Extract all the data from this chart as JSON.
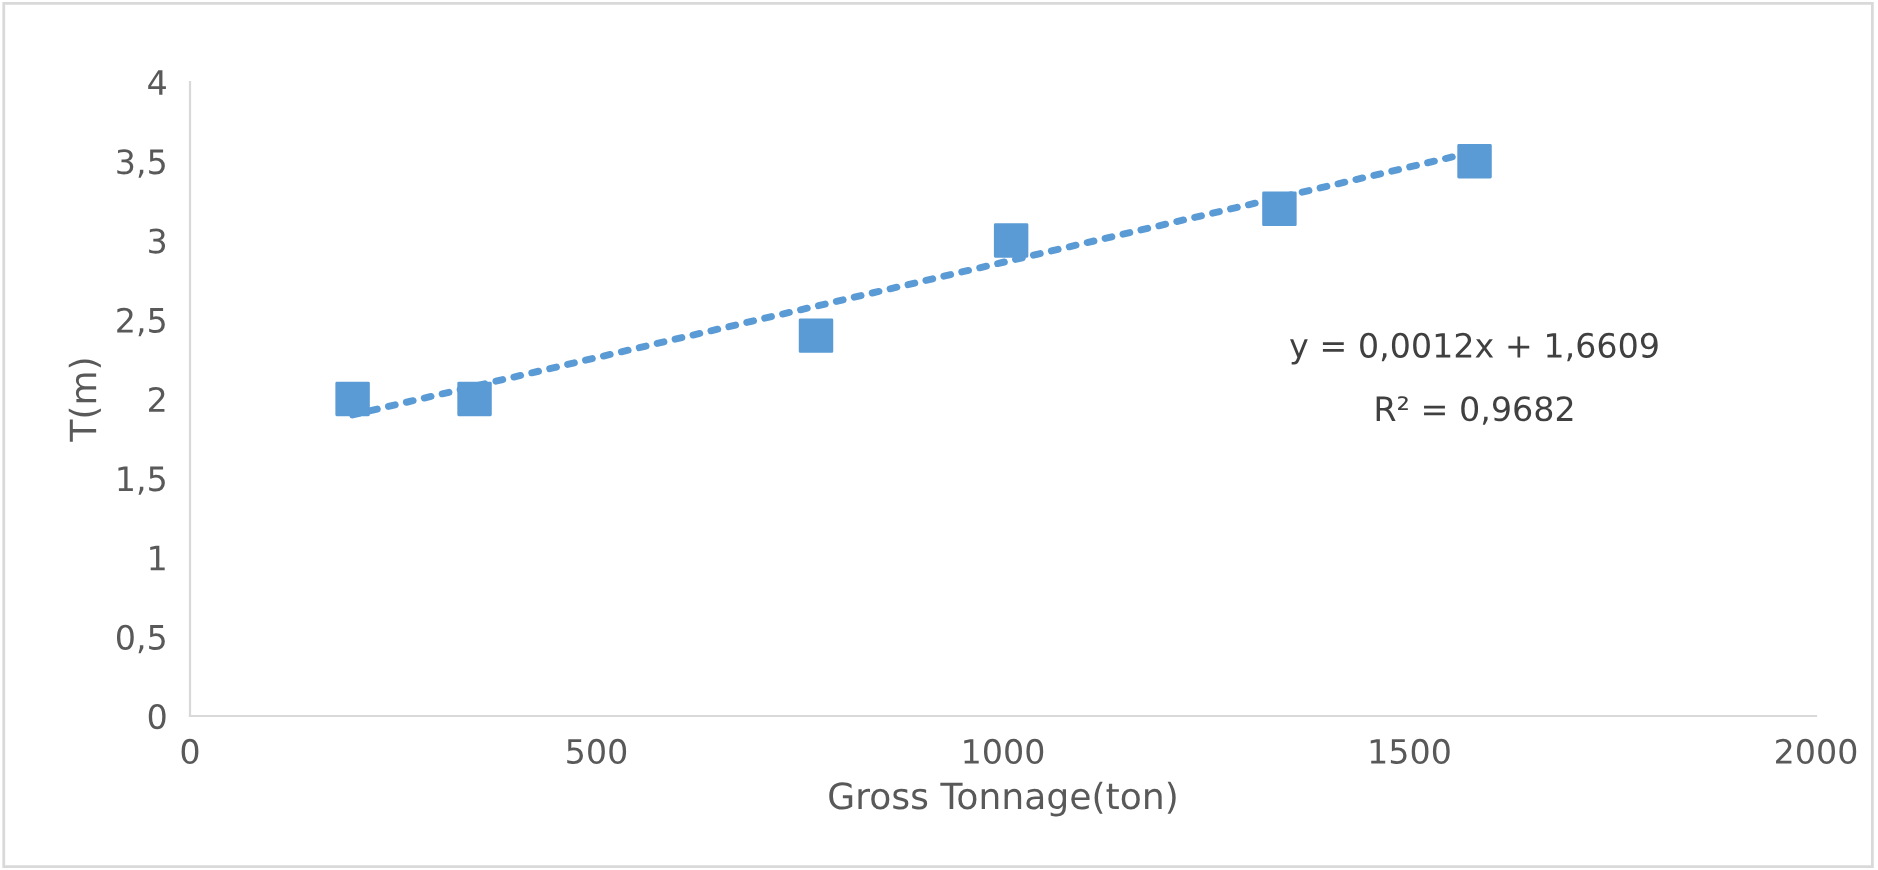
{
  "chart_data": {
    "type": "scatter",
    "xlabel": "Gross Tonnage(ton)",
    "ylabel": "T(m)",
    "marker": "square",
    "grid": false,
    "legend": false,
    "xlim": [
      0,
      2000
    ],
    "xticks": [
      0,
      500,
      1000,
      1500,
      2000
    ],
    "ylim": [
      0,
      4
    ],
    "yticks": [
      0,
      {
        "value": 0.5,
        "label": "0,5"
      },
      1,
      {
        "value": 1.5,
        "label": "1,5"
      },
      2,
      {
        "value": 2.5,
        "label": "2,5"
      },
      3,
      {
        "value": 3.5,
        "label": "3,5"
      },
      4
    ],
    "series": [
      {
        "color": "#5b9bd5",
        "x": [
          200,
          350,
          770,
          1010,
          1340,
          1580
        ],
        "values": [
          2,
          2,
          2.4,
          3,
          3.2,
          3.5
        ]
      },
      {
        "type": "line",
        "line_style": "dotted",
        "marker": "none",
        "color": "#5b9bd5",
        "x": [
          200,
          1580
        ],
        "values": [
          1.9,
          3.56
        ]
      }
    ],
    "annotations": [
      "y = 0,0012x + 1,6609",
      "R² = 0,9682"
    ]
  }
}
